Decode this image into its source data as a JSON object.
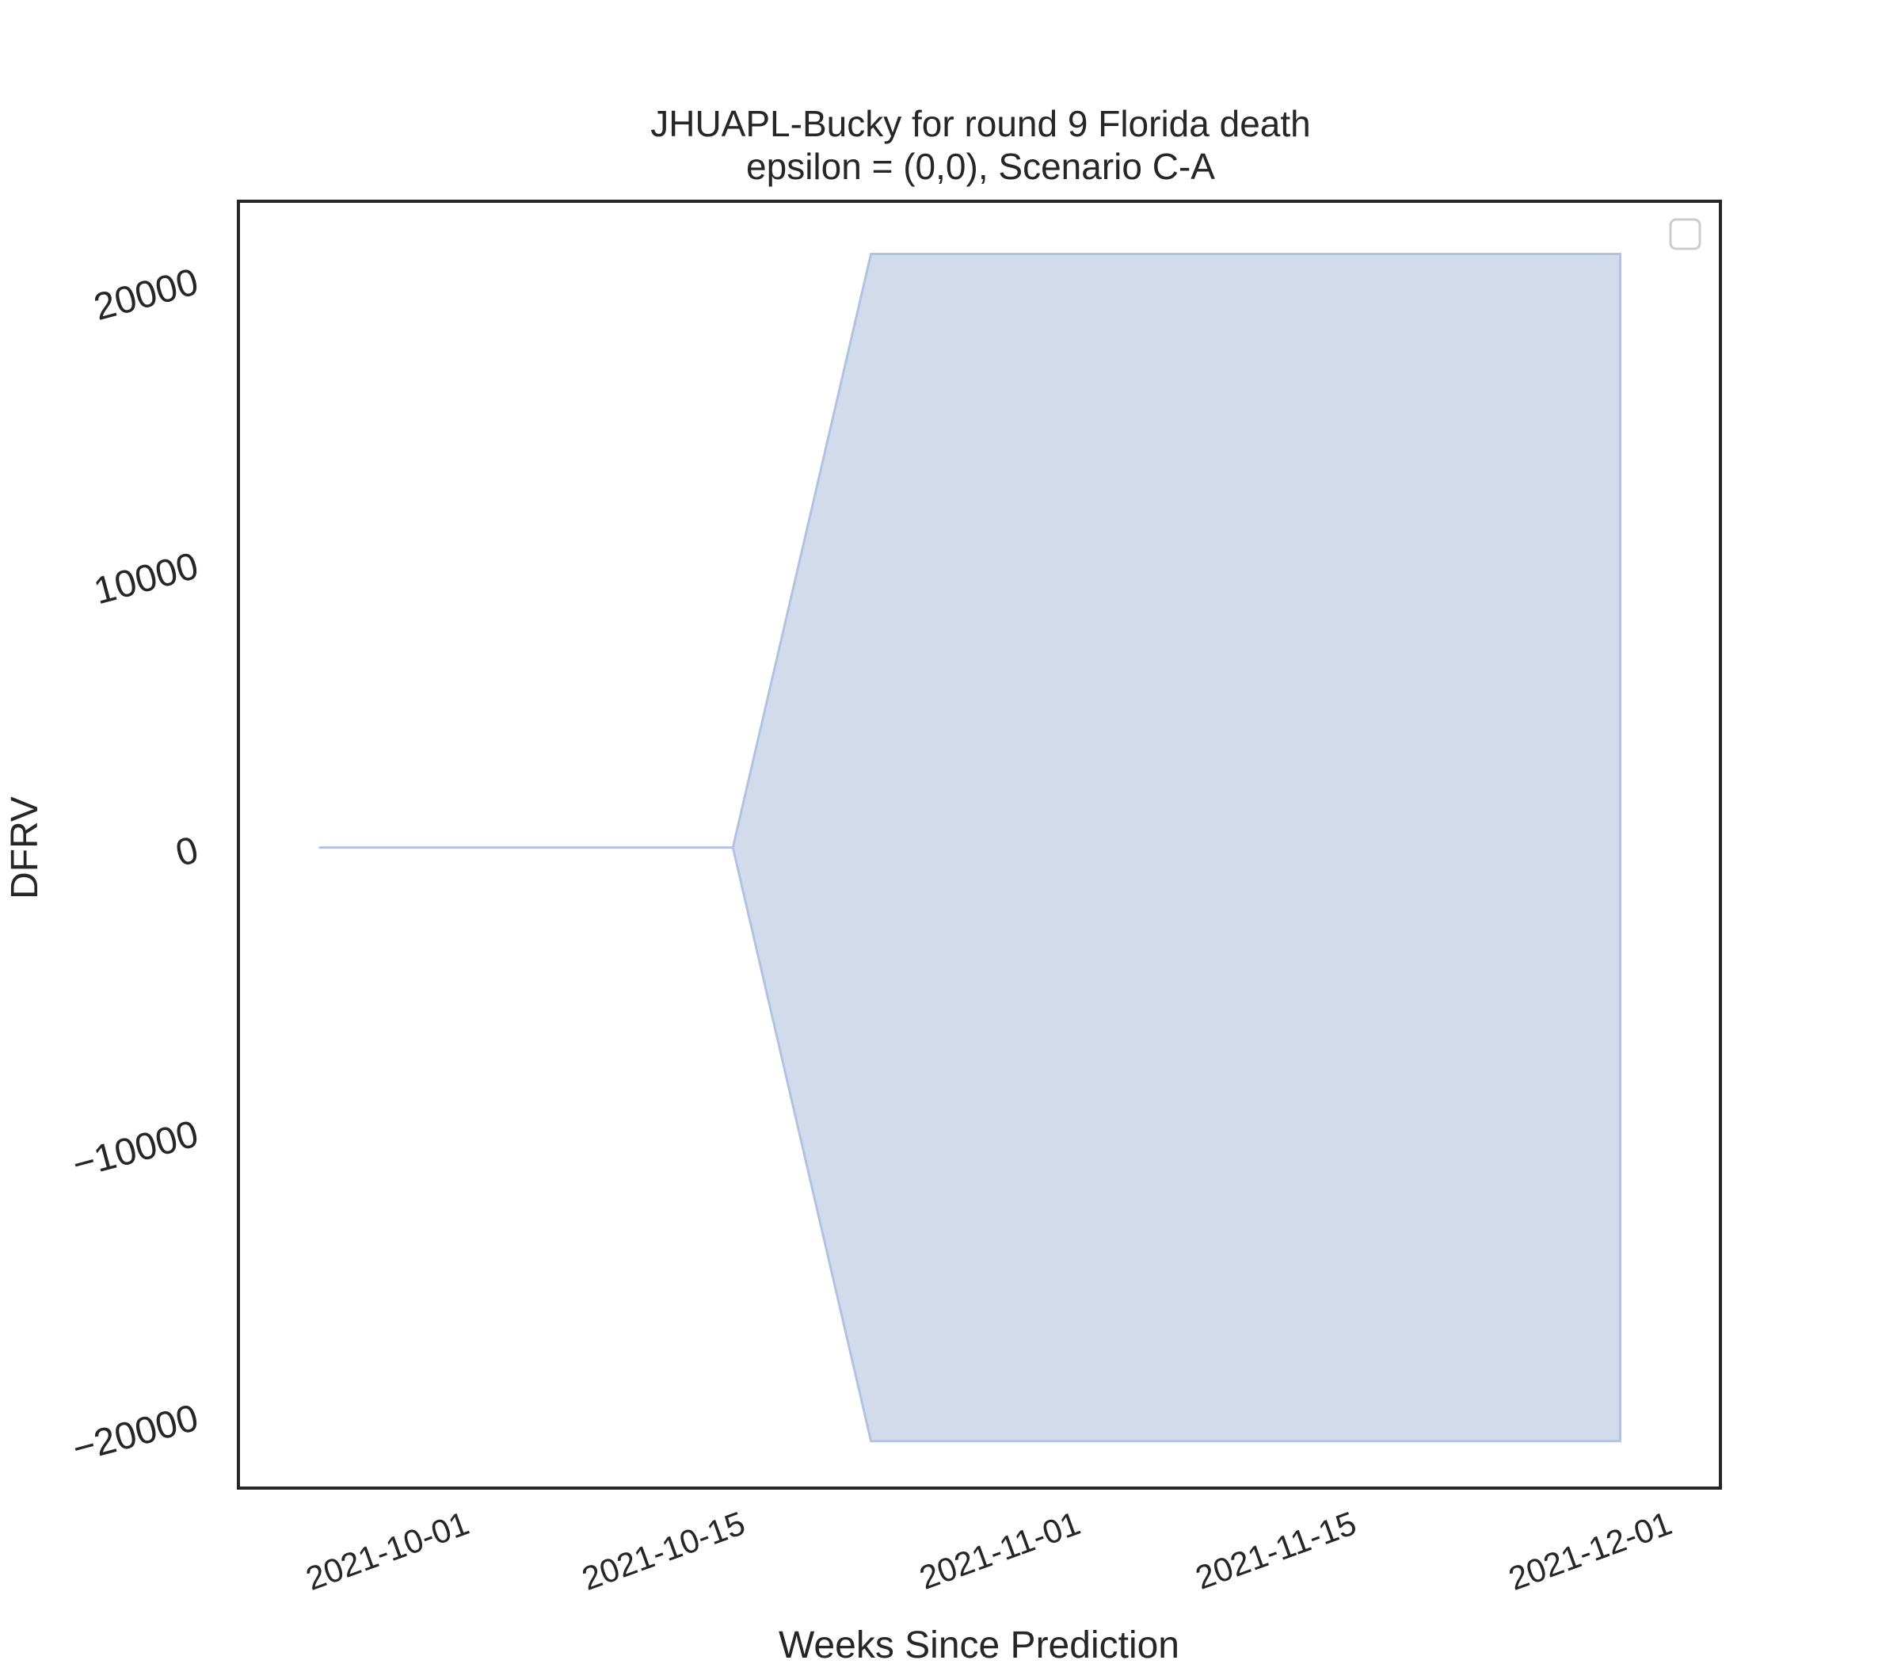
{
  "chart_data": {
    "type": "area",
    "title": "JHUAPL-Bucky for round 9 Florida death",
    "subtitle": "epsilon = (0,0), Scenario C-A",
    "xlabel": "Weeks Since Prediction",
    "ylabel": "DFRV",
    "x_axis_type": "date",
    "xlim": [
      "2021-09-21",
      "2021-12-05"
    ],
    "ylim": [
      -22500,
      22700
    ],
    "x_ticks": [
      "2021-10-01",
      "2021-10-15",
      "2021-11-01",
      "2021-11-15",
      "2021-12-01"
    ],
    "y_ticks": [
      20000,
      10000,
      0,
      -10000,
      -20000
    ],
    "y_tick_labels": [
      "20000",
      "10000",
      "0",
      "−10000",
      "−20000"
    ],
    "grid": false,
    "legend": {
      "placement": "top-right",
      "entries": []
    },
    "series": [
      {
        "fill_color": "#d1dbec",
        "edge_color": "#b3c2e0",
        "x": [
          "2021-09-25",
          "2021-10-16",
          "2021-10-23",
          "2021-11-30"
        ],
        "upper": [
          0,
          0,
          20900,
          20900
        ],
        "lower": [
          0,
          0,
          -20900,
          -20900
        ]
      }
    ]
  }
}
